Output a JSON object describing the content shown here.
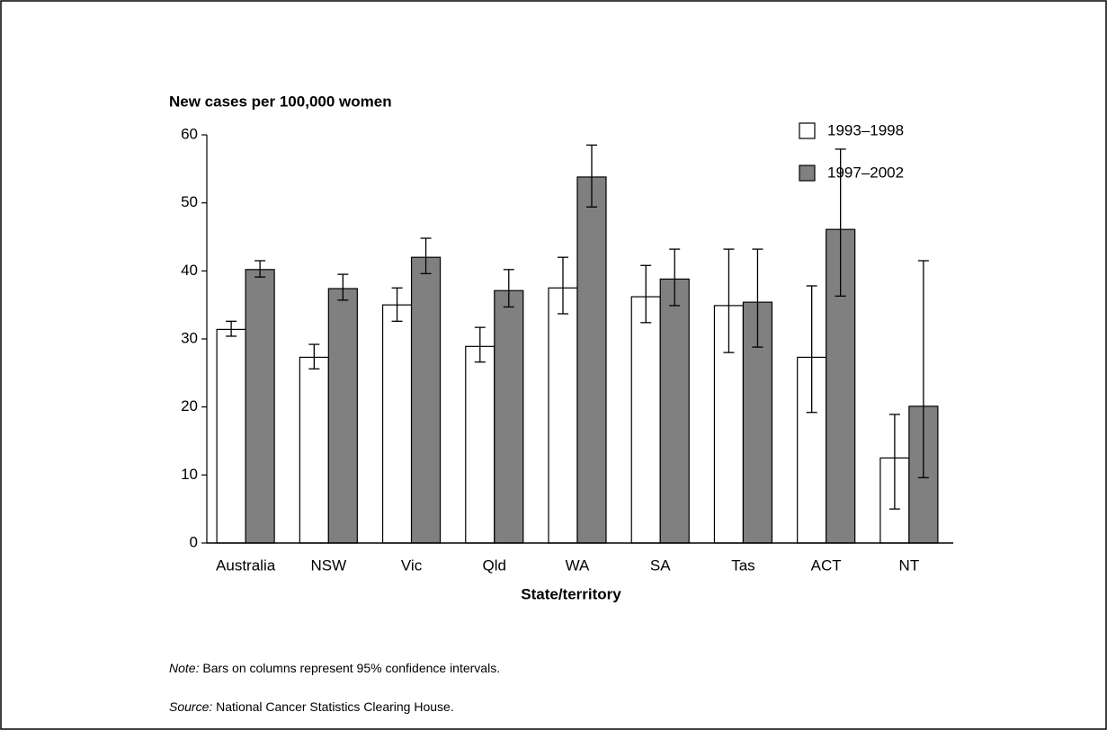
{
  "chart_data": {
    "type": "bar",
    "y_axis_label": "New cases per 100,000 women",
    "x_axis_label": "State/territory",
    "categories": [
      "Australia",
      "NSW",
      "Vic",
      "Qld",
      "WA",
      "SA",
      "Tas",
      "ACT",
      "NT"
    ],
    "series": [
      {
        "name": "1993–1998",
        "color": "#ffffff",
        "values": [
          31.4,
          27.3,
          35.0,
          28.9,
          37.5,
          36.2,
          34.9,
          27.3,
          12.5
        ],
        "lower": [
          30.4,
          25.6,
          32.6,
          26.6,
          33.7,
          32.4,
          28.0,
          19.2,
          5.0
        ],
        "upper": [
          32.6,
          29.2,
          37.5,
          31.7,
          42.0,
          40.8,
          43.2,
          37.8,
          18.9
        ]
      },
      {
        "name": "1997–2002",
        "color": "#808080",
        "values": [
          40.2,
          37.4,
          42.0,
          37.1,
          53.8,
          38.8,
          35.4,
          46.1,
          20.1
        ],
        "lower": [
          39.1,
          35.7,
          39.6,
          34.7,
          49.4,
          34.9,
          28.8,
          36.3,
          9.6
        ],
        "upper": [
          41.5,
          39.5,
          44.8,
          40.2,
          58.5,
          43.2,
          43.2,
          57.9,
          41.5
        ]
      }
    ],
    "ylim": [
      0,
      60
    ],
    "yticks": [
      0,
      10,
      20,
      30,
      40,
      50,
      60
    ],
    "legend": "upper right",
    "note_label": "Note:",
    "note_text": "Bars on columns represent 95% confidence intervals.",
    "source_label": "Source:",
    "source_text": "National Cancer Statistics Clearing House."
  }
}
